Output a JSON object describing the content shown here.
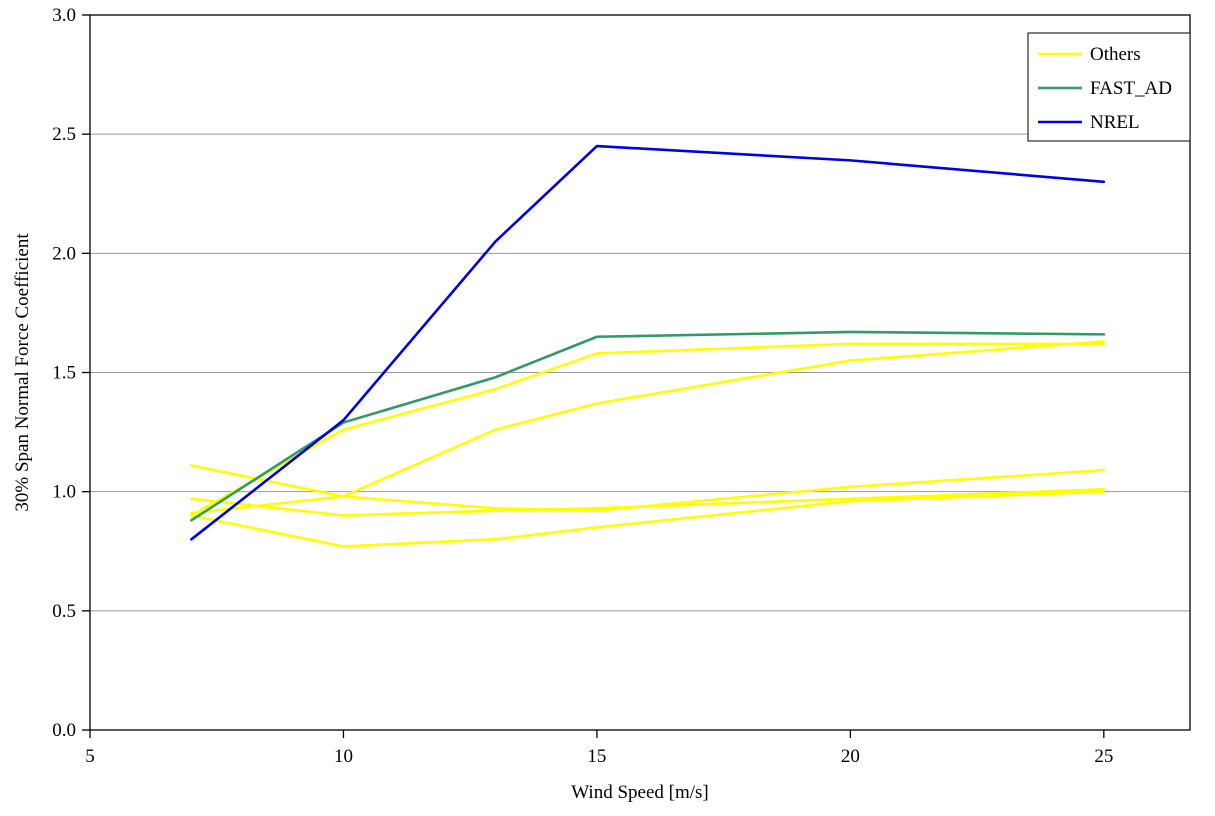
{
  "chart_data": {
    "type": "line",
    "title": "",
    "xlabel": "Wind Speed [m/s]",
    "ylabel": "30% Span Normal Force Coefficient",
    "xlim": [
      5,
      26.7
    ],
    "ylim": [
      0.0,
      3.0
    ],
    "xticks": [
      5,
      10,
      15,
      20,
      25
    ],
    "yticks": [
      0.0,
      0.5,
      1.0,
      1.5,
      2.0,
      2.5,
      3.0
    ],
    "grid": "horizontal",
    "grid_color": "#999999",
    "axis_color": "#000000",
    "legend_position": "top-right",
    "x": [
      7,
      10,
      13,
      15,
      20,
      25
    ],
    "series": [
      {
        "name": "Others-1",
        "group": "Others",
        "color": "#FFFF00",
        "values": [
          0.9,
          1.26,
          1.43,
          1.58,
          1.62,
          1.62
        ]
      },
      {
        "name": "Others-2",
        "group": "Others",
        "color": "#FFFF00",
        "values": [
          0.91,
          0.98,
          1.26,
          1.37,
          1.55,
          1.63
        ]
      },
      {
        "name": "Others-3",
        "group": "Others",
        "color": "#FFFF00",
        "values": [
          1.11,
          0.98,
          0.93,
          0.92,
          1.02,
          1.09
        ]
      },
      {
        "name": "Others-4",
        "group": "Others",
        "color": "#FFFF00",
        "values": [
          0.97,
          0.9,
          0.92,
          0.93,
          0.97,
          1.01
        ]
      },
      {
        "name": "Others-5",
        "group": "Others",
        "color": "#FFFF00",
        "values": [
          0.9,
          0.77,
          0.8,
          0.85,
          0.96,
          1.0
        ]
      },
      {
        "name": "FAST_AD",
        "group": "FAST_AD",
        "color": "#339966",
        "values": [
          0.88,
          1.29,
          1.48,
          1.65,
          1.67,
          1.66
        ]
      },
      {
        "name": "NREL",
        "group": "NREL",
        "color": "#0000E0",
        "values": [
          0.8,
          1.3,
          2.05,
          2.45,
          2.39,
          2.3
        ]
      }
    ],
    "legend_entries": [
      {
        "label": "Others",
        "color": "#FFFF00"
      },
      {
        "label": "FAST_AD",
        "color": "#339966"
      },
      {
        "label": "NREL",
        "color": "#0000E0"
      }
    ]
  }
}
